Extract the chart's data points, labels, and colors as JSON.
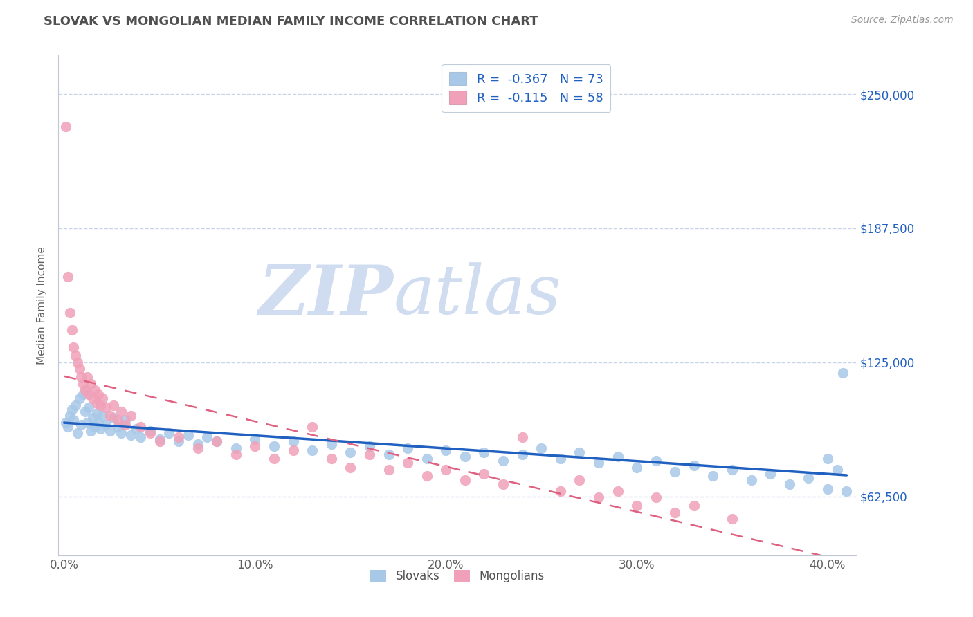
{
  "title": "SLOVAK VS MONGOLIAN MEDIAN FAMILY INCOME CORRELATION CHART",
  "source_text": "Source: ZipAtlas.com",
  "xlabel_ticks": [
    "0.0%",
    "10.0%",
    "20.0%",
    "30.0%",
    "40.0%"
  ],
  "xlabel_vals": [
    0.0,
    0.1,
    0.2,
    0.3,
    0.4
  ],
  "ylabel": "Median Family Income",
  "ytick_vals": [
    62500,
    125000,
    187500,
    250000
  ],
  "ytick_labels": [
    "$62,500",
    "$125,000",
    "$187,500",
    "$250,000"
  ],
  "xlim": [
    -0.003,
    0.415
  ],
  "ylim": [
    35000,
    268000
  ],
  "slovak_R": -0.367,
  "slovak_N": 73,
  "mongolian_R": -0.115,
  "mongolian_N": 58,
  "slovak_color": "#a8c8e8",
  "mongolian_color": "#f0a0b8",
  "slovak_line_color": "#2060c0",
  "mongolian_line_color": "#e06080",
  "watermark_zip": "ZIP",
  "watermark_atlas": "atlas",
  "watermark_color": "#d0ddf0",
  "legend_text_color": "#2060c0",
  "background_color": "#ffffff",
  "grid_color": "#c8d4e8",
  "title_color": "#505050",
  "ylabel_color": "#606060",
  "slovak_x": [
    0.001,
    0.002,
    0.003,
    0.004,
    0.005,
    0.006,
    0.007,
    0.008,
    0.009,
    0.01,
    0.011,
    0.012,
    0.013,
    0.014,
    0.015,
    0.016,
    0.017,
    0.018,
    0.019,
    0.02,
    0.022,
    0.024,
    0.026,
    0.028,
    0.03,
    0.032,
    0.035,
    0.038,
    0.04,
    0.045,
    0.05,
    0.055,
    0.06,
    0.065,
    0.07,
    0.075,
    0.08,
    0.09,
    0.1,
    0.11,
    0.12,
    0.13,
    0.14,
    0.15,
    0.16,
    0.17,
    0.18,
    0.19,
    0.2,
    0.21,
    0.22,
    0.23,
    0.24,
    0.25,
    0.26,
    0.27,
    0.28,
    0.29,
    0.3,
    0.31,
    0.32,
    0.33,
    0.34,
    0.35,
    0.36,
    0.37,
    0.38,
    0.39,
    0.4,
    0.4,
    0.405,
    0.408,
    0.41
  ],
  "slovak_y": [
    97000,
    95000,
    100000,
    103000,
    98000,
    105000,
    92000,
    108000,
    96000,
    110000,
    102000,
    97000,
    104000,
    93000,
    99000,
    95000,
    101000,
    97000,
    94000,
    100000,
    96000,
    93000,
    99000,
    95000,
    92000,
    98000,
    91000,
    94000,
    90000,
    93000,
    89000,
    92000,
    88000,
    91000,
    87000,
    90000,
    88000,
    85000,
    89000,
    86000,
    88000,
    84000,
    87000,
    83000,
    86000,
    82000,
    85000,
    80000,
    84000,
    81000,
    83000,
    79000,
    82000,
    85000,
    80000,
    83000,
    78000,
    81000,
    76000,
    79000,
    74000,
    77000,
    72000,
    75000,
    70000,
    73000,
    68000,
    71000,
    66000,
    80000,
    75000,
    120000,
    65000
  ],
  "mongolian_x": [
    0.001,
    0.002,
    0.003,
    0.004,
    0.005,
    0.006,
    0.007,
    0.008,
    0.009,
    0.01,
    0.011,
    0.012,
    0.013,
    0.014,
    0.015,
    0.016,
    0.017,
    0.018,
    0.019,
    0.02,
    0.022,
    0.024,
    0.026,
    0.028,
    0.03,
    0.032,
    0.035,
    0.04,
    0.045,
    0.05,
    0.06,
    0.07,
    0.08,
    0.09,
    0.1,
    0.11,
    0.12,
    0.13,
    0.14,
    0.15,
    0.16,
    0.17,
    0.18,
    0.19,
    0.2,
    0.21,
    0.22,
    0.23,
    0.24,
    0.26,
    0.27,
    0.28,
    0.29,
    0.3,
    0.31,
    0.32,
    0.33,
    0.35
  ],
  "mongolian_y": [
    235000,
    165000,
    148000,
    140000,
    132000,
    128000,
    125000,
    122000,
    118000,
    115000,
    112000,
    118000,
    110000,
    115000,
    108000,
    112000,
    106000,
    110000,
    105000,
    108000,
    104000,
    100000,
    105000,
    98000,
    102000,
    96000,
    100000,
    95000,
    92000,
    88000,
    90000,
    85000,
    88000,
    82000,
    86000,
    80000,
    84000,
    95000,
    80000,
    76000,
    82000,
    75000,
    78000,
    72000,
    75000,
    70000,
    73000,
    68000,
    90000,
    65000,
    70000,
    62000,
    65000,
    58000,
    62000,
    55000,
    58000,
    52000
  ]
}
